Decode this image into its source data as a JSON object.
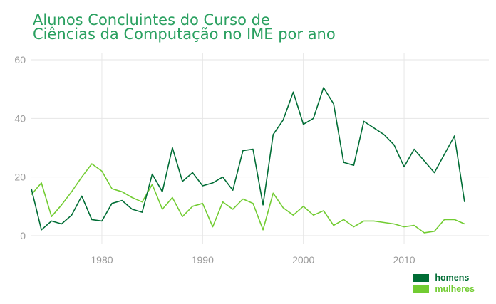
{
  "chart_data": {
    "type": "line",
    "title_lines": [
      "Alunos Concluintes do Curso de",
      "Ciências da Computação no IME por ano"
    ],
    "xlim": [
      1973,
      2017
    ],
    "ylim": [
      0,
      60
    ],
    "x_ticks": [
      1980,
      1990,
      2000,
      2010
    ],
    "y_ticks": [
      0,
      20,
      40,
      60
    ],
    "grid": true,
    "legend_position": "bottom-right",
    "series": [
      {
        "name": "homens",
        "color": "#006d35",
        "points": [
          [
            1973,
            16
          ],
          [
            1974,
            2
          ],
          [
            1975,
            5
          ],
          [
            1976,
            4
          ],
          [
            1977,
            7
          ],
          [
            1978,
            13.5
          ],
          [
            1979,
            5.5
          ],
          [
            1980,
            5
          ],
          [
            1981,
            11
          ],
          [
            1982,
            12
          ],
          [
            1983,
            9
          ],
          [
            1984,
            8
          ],
          [
            1985,
            21
          ],
          [
            1986,
            15
          ],
          [
            1987,
            30
          ],
          [
            1988,
            18.5
          ],
          [
            1989,
            21.5
          ],
          [
            1990,
            17
          ],
          [
            1991,
            18
          ],
          [
            1992,
            20
          ],
          [
            1993,
            15.5
          ],
          [
            1994,
            29
          ],
          [
            1995,
            29.5
          ],
          [
            1996,
            10.5
          ],
          [
            1997,
            34.5
          ],
          [
            1998,
            39.5
          ],
          [
            1999,
            49
          ],
          [
            2000,
            38
          ],
          [
            2001,
            40
          ],
          [
            2002,
            50.5
          ],
          [
            2003,
            45
          ],
          [
            2004,
            25
          ],
          [
            2005,
            24
          ],
          [
            2006,
            39
          ],
          [
            2008,
            34.5
          ],
          [
            2009,
            31
          ],
          [
            2010,
            23.5
          ],
          [
            2011,
            29.5
          ],
          [
            2013,
            21.5
          ],
          [
            2015,
            34
          ],
          [
            2016,
            11.5
          ]
        ]
      },
      {
        "name": "mulheres",
        "color": "#72cc32",
        "points": [
          [
            1973,
            14
          ],
          [
            1974,
            18
          ],
          [
            1975,
            6.5
          ],
          [
            1976,
            10.5
          ],
          [
            1977,
            15
          ],
          [
            1978,
            20
          ],
          [
            1979,
            24.5
          ],
          [
            1980,
            22
          ],
          [
            1981,
            16
          ],
          [
            1982,
            15
          ],
          [
            1983,
            13
          ],
          [
            1984,
            11.5
          ],
          [
            1985,
            17.5
          ],
          [
            1986,
            9
          ],
          [
            1987,
            13
          ],
          [
            1988,
            6.5
          ],
          [
            1989,
            10
          ],
          [
            1990,
            11
          ],
          [
            1991,
            3
          ],
          [
            1992,
            11.5
          ],
          [
            1993,
            9
          ],
          [
            1994,
            12.5
          ],
          [
            1995,
            11
          ],
          [
            1996,
            2
          ],
          [
            1997,
            14.5
          ],
          [
            1998,
            9.5
          ],
          [
            1999,
            7
          ],
          [
            2000,
            10
          ],
          [
            2001,
            7
          ],
          [
            2002,
            8.5
          ],
          [
            2003,
            3.5
          ],
          [
            2004,
            5.5
          ],
          [
            2005,
            3
          ],
          [
            2006,
            5
          ],
          [
            2007,
            5
          ],
          [
            2008,
            4.5
          ],
          [
            2009,
            4
          ],
          [
            2010,
            3
          ],
          [
            2011,
            3.5
          ],
          [
            2012,
            1
          ],
          [
            2013,
            1.5
          ],
          [
            2014,
            5.5
          ],
          [
            2015,
            5.5
          ],
          [
            2016,
            4
          ]
        ]
      }
    ]
  }
}
